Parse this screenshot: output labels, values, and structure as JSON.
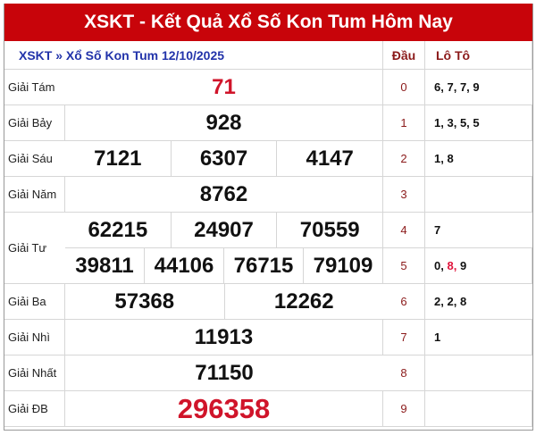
{
  "title": "XSKT - Kết Quả Xổ Số Kon Tum Hôm Nay",
  "breadcrumb": "XSKT » Xổ Số Kon Tum 12/10/2025",
  "headers": {
    "dau": "Đầu",
    "loto": "Lô Tô"
  },
  "prizes": {
    "g8": {
      "label": "Giải Tám",
      "numbers": [
        "71"
      ]
    },
    "g7": {
      "label": "Giải Bảy",
      "numbers": [
        "928"
      ]
    },
    "g6": {
      "label": "Giải Sáu",
      "numbers": [
        "7121",
        "6307",
        "4147"
      ]
    },
    "g5": {
      "label": "Giải Năm",
      "numbers": [
        "8762"
      ]
    },
    "g4": {
      "label": "Giải Tư",
      "numbers": [
        "62215",
        "24907",
        "70559",
        "39811",
        "44106",
        "76715",
        "79109"
      ]
    },
    "g3": {
      "label": "Giải Ba",
      "numbers": [
        "57368",
        "12262"
      ]
    },
    "g2": {
      "label": "Giải Nhì",
      "numbers": [
        "11913"
      ]
    },
    "g1": {
      "label": "Giải Nhất",
      "numbers": [
        "71150"
      ]
    },
    "db": {
      "label": "Giải ĐB",
      "numbers": [
        "296358"
      ]
    }
  },
  "loto": [
    {
      "dau": "0",
      "tails": [
        "6",
        "7",
        "7",
        "9"
      ]
    },
    {
      "dau": "1",
      "tails": [
        "1",
        "3",
        "5",
        "5"
      ]
    },
    {
      "dau": "2",
      "tails": [
        "1",
        "8"
      ]
    },
    {
      "dau": "3",
      "tails": []
    },
    {
      "dau": "4",
      "tails": [
        "7"
      ]
    },
    {
      "dau": "5",
      "tails": [
        "0",
        "8",
        "9"
      ],
      "highlight": "8"
    },
    {
      "dau": "6",
      "tails": [
        "2",
        "2",
        "8"
      ]
    },
    {
      "dau": "7",
      "tails": [
        "1"
      ]
    },
    {
      "dau": "8",
      "tails": []
    },
    {
      "dau": "9",
      "tails": []
    }
  ],
  "colors": {
    "header_bg": "#c8040a",
    "special_prize": "#d0142a",
    "breadcrumb": "#2233aa"
  }
}
